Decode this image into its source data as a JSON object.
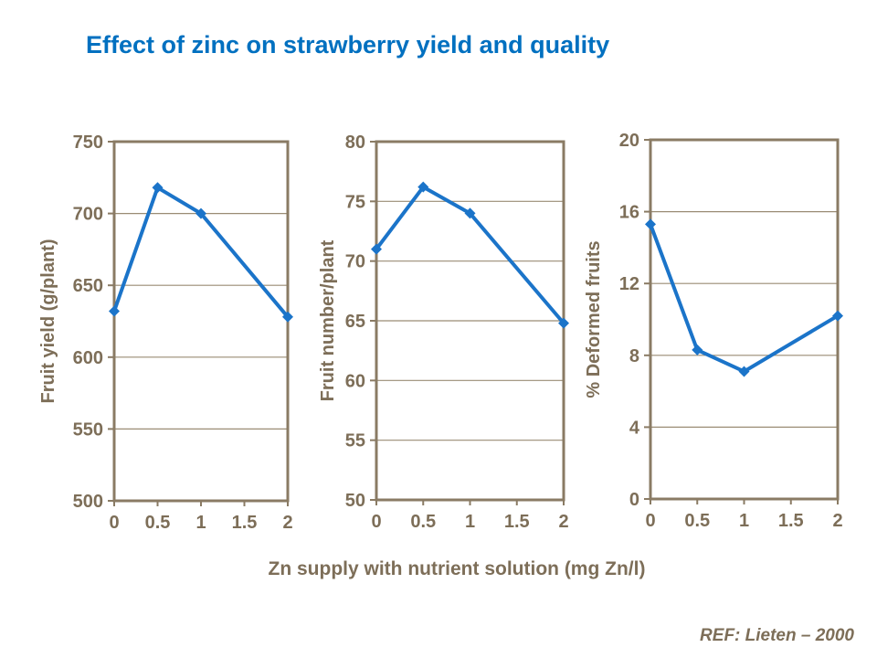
{
  "slide": {
    "title": "Effect of zinc on strawberry yield and quality",
    "x_axis_title": "Zn supply with nutrient solution (mg Zn/l)",
    "reference": "REF:  Lieten – 2000"
  },
  "colors": {
    "title": "#0070C0",
    "series_line": "#1B74C9",
    "axis": "#8A7B64",
    "gridline": "#9A8C74",
    "axis_text": "#7D6E58"
  },
  "chart_data": [
    {
      "type": "line",
      "title": "",
      "ylabel": "Fruit yield  (g/plant)",
      "xlabel": "Zn supply with nutrient solution (mg Zn/l)",
      "x": [
        0,
        0.5,
        1,
        2
      ],
      "values": [
        632,
        718,
        700,
        628
      ],
      "xlim": [
        0,
        2
      ],
      "ylim": [
        500,
        750
      ],
      "xticks": [
        0,
        0.5,
        1,
        1.5,
        2
      ],
      "yticks": [
        500,
        550,
        600,
        650,
        700,
        750
      ],
      "grid": "horizontal",
      "legend": "none",
      "marker": "diamond"
    },
    {
      "type": "line",
      "title": "",
      "ylabel": "Fruit number/plant",
      "xlabel": "Zn supply with nutrient solution (mg Zn/l)",
      "x": [
        0,
        0.5,
        1,
        2
      ],
      "values": [
        71,
        76.2,
        74,
        64.8
      ],
      "xlim": [
        0,
        2
      ],
      "ylim": [
        50,
        80
      ],
      "xticks": [
        0,
        0.5,
        1,
        1.5,
        2
      ],
      "yticks": [
        50,
        55,
        60,
        65,
        70,
        75,
        80
      ],
      "grid": "horizontal",
      "legend": "none",
      "marker": "diamond"
    },
    {
      "type": "line",
      "title": "",
      "ylabel": "% Deformed fruits",
      "xlabel": "Zn supply with nutrient solution (mg Zn/l)",
      "x": [
        0,
        0.5,
        1,
        2
      ],
      "values": [
        15.3,
        8.3,
        7.1,
        10.2
      ],
      "xlim": [
        0,
        2
      ],
      "ylim": [
        0,
        20
      ],
      "xticks": [
        0,
        0.5,
        1,
        1.5,
        2
      ],
      "yticks": [
        0,
        4,
        8,
        12,
        16,
        20
      ],
      "grid": "horizontal",
      "legend": "none",
      "marker": "diamond"
    }
  ]
}
